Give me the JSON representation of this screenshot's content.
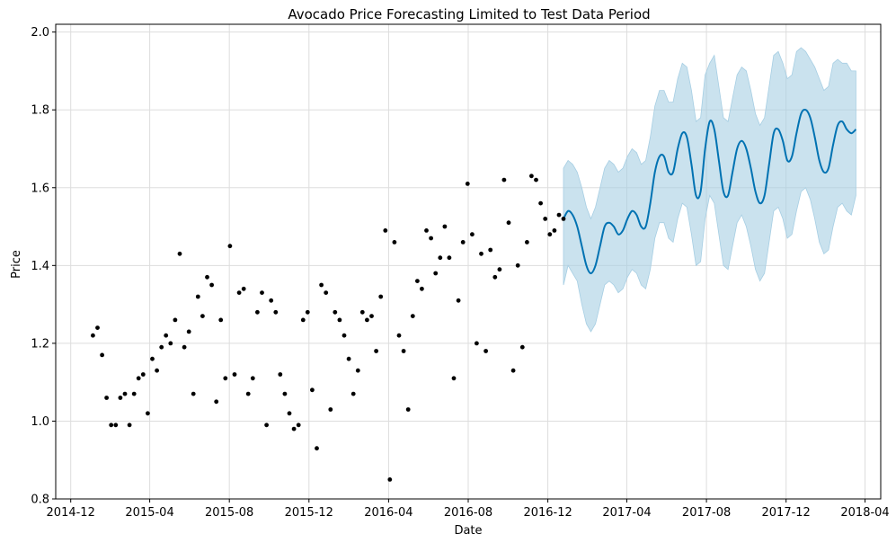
{
  "chart_data": {
    "type": "scatter",
    "title": "Avocado Price Forecasting Limited to Test Data Period",
    "xlabel": "Date",
    "ylabel": "Price",
    "xlim": [
      "2014-11-08",
      "2018-04-25"
    ],
    "ylim": [
      0.8,
      2.02
    ],
    "x_ticks": [
      "2014-12",
      "2015-04",
      "2015-08",
      "2015-12",
      "2016-04",
      "2016-08",
      "2016-12",
      "2017-04",
      "2017-08",
      "2017-12",
      "2018-04"
    ],
    "y_ticks": [
      "0.8",
      "1.0",
      "1.2",
      "1.4",
      "1.6",
      "1.8",
      "2.0"
    ],
    "grid": true,
    "colors": {
      "observed": "#000000",
      "forecast_line": "#0072B2",
      "interval_fill": "#A6CEE3"
    },
    "observed": [
      [
        "2015-01-04",
        1.22
      ],
      [
        "2015-01-11",
        1.24
      ],
      [
        "2015-01-18",
        1.17
      ],
      [
        "2015-01-25",
        1.06
      ],
      [
        "2015-02-01",
        0.99
      ],
      [
        "2015-02-08",
        0.99
      ],
      [
        "2015-02-15",
        1.06
      ],
      [
        "2015-02-22",
        1.07
      ],
      [
        "2015-03-01",
        0.99
      ],
      [
        "2015-03-08",
        1.07
      ],
      [
        "2015-03-15",
        1.11
      ],
      [
        "2015-03-22",
        1.12
      ],
      [
        "2015-03-29",
        1.02
      ],
      [
        "2015-04-05",
        1.16
      ],
      [
        "2015-04-12",
        1.13
      ],
      [
        "2015-04-19",
        1.19
      ],
      [
        "2015-04-26",
        1.22
      ],
      [
        "2015-05-03",
        1.2
      ],
      [
        "2015-05-10",
        1.26
      ],
      [
        "2015-05-17",
        1.43
      ],
      [
        "2015-05-24",
        1.19
      ],
      [
        "2015-05-31",
        1.23
      ],
      [
        "2015-06-07",
        1.07
      ],
      [
        "2015-06-14",
        1.32
      ],
      [
        "2015-06-21",
        1.27
      ],
      [
        "2015-06-28",
        1.37
      ],
      [
        "2015-07-05",
        1.35
      ],
      [
        "2015-07-12",
        1.05
      ],
      [
        "2015-07-19",
        1.26
      ],
      [
        "2015-07-26",
        1.11
      ],
      [
        "2015-08-02",
        1.45
      ],
      [
        "2015-08-09",
        1.12
      ],
      [
        "2015-08-16",
        1.33
      ],
      [
        "2015-08-23",
        1.34
      ],
      [
        "2015-08-30",
        1.07
      ],
      [
        "2015-09-06",
        1.11
      ],
      [
        "2015-09-13",
        1.28
      ],
      [
        "2015-09-20",
        1.33
      ],
      [
        "2015-09-27",
        0.99
      ],
      [
        "2015-10-04",
        1.31
      ],
      [
        "2015-10-11",
        1.28
      ],
      [
        "2015-10-18",
        1.12
      ],
      [
        "2015-10-25",
        1.07
      ],
      [
        "2015-11-01",
        1.02
      ],
      [
        "2015-11-08",
        0.98
      ],
      [
        "2015-11-15",
        0.99
      ],
      [
        "2015-11-22",
        1.26
      ],
      [
        "2015-11-29",
        1.28
      ],
      [
        "2015-12-06",
        1.08
      ],
      [
        "2015-12-13",
        0.93
      ],
      [
        "2015-12-20",
        1.35
      ],
      [
        "2015-12-27",
        1.33
      ],
      [
        "2016-01-03",
        1.03
      ],
      [
        "2016-01-10",
        1.28
      ],
      [
        "2016-01-17",
        1.26
      ],
      [
        "2016-01-24",
        1.22
      ],
      [
        "2016-01-31",
        1.16
      ],
      [
        "2016-02-07",
        1.07
      ],
      [
        "2016-02-14",
        1.13
      ],
      [
        "2016-02-21",
        1.28
      ],
      [
        "2016-02-28",
        1.26
      ],
      [
        "2016-03-06",
        1.27
      ],
      [
        "2016-03-13",
        1.18
      ],
      [
        "2016-03-20",
        1.32
      ],
      [
        "2016-03-27",
        1.49
      ],
      [
        "2016-04-03",
        0.85
      ],
      [
        "2016-04-10",
        1.46
      ],
      [
        "2016-04-17",
        1.22
      ],
      [
        "2016-04-24",
        1.18
      ],
      [
        "2016-05-01",
        1.03
      ],
      [
        "2016-05-08",
        1.27
      ],
      [
        "2016-05-15",
        1.36
      ],
      [
        "2016-05-22",
        1.34
      ],
      [
        "2016-05-29",
        1.49
      ],
      [
        "2016-06-05",
        1.47
      ],
      [
        "2016-06-12",
        1.38
      ],
      [
        "2016-06-19",
        1.42
      ],
      [
        "2016-06-26",
        1.5
      ],
      [
        "2016-07-03",
        1.42
      ],
      [
        "2016-07-10",
        1.11
      ],
      [
        "2016-07-17",
        1.31
      ],
      [
        "2016-07-24",
        1.46
      ],
      [
        "2016-07-31",
        1.61
      ],
      [
        "2016-08-07",
        1.48
      ],
      [
        "2016-08-14",
        1.2
      ],
      [
        "2016-08-21",
        1.43
      ],
      [
        "2016-08-28",
        1.18
      ],
      [
        "2016-09-04",
        1.44
      ],
      [
        "2016-09-11",
        1.37
      ],
      [
        "2016-09-18",
        1.39
      ],
      [
        "2016-09-25",
        1.62
      ],
      [
        "2016-10-02",
        1.51
      ],
      [
        "2016-10-09",
        1.13
      ],
      [
        "2016-10-16",
        1.4
      ],
      [
        "2016-10-23",
        1.19
      ],
      [
        "2016-10-30",
        1.46
      ],
      [
        "2016-11-06",
        1.63
      ],
      [
        "2016-11-13",
        1.62
      ],
      [
        "2016-11-20",
        1.56
      ],
      [
        "2016-11-27",
        1.52
      ],
      [
        "2016-12-04",
        1.48
      ],
      [
        "2016-12-11",
        1.49
      ],
      [
        "2016-12-18",
        1.53
      ],
      [
        "2016-12-25",
        1.52
      ]
    ],
    "forecast": [
      [
        "2016-12-25",
        1.52,
        1.35,
        1.65
      ],
      [
        "2017-01-01",
        1.54,
        1.4,
        1.67
      ],
      [
        "2017-01-08",
        1.53,
        1.38,
        1.66
      ],
      [
        "2017-01-15",
        1.5,
        1.36,
        1.64
      ],
      [
        "2017-01-22",
        1.45,
        1.3,
        1.6
      ],
      [
        "2017-01-29",
        1.4,
        1.25,
        1.55
      ],
      [
        "2017-02-05",
        1.38,
        1.23,
        1.52
      ],
      [
        "2017-02-12",
        1.4,
        1.25,
        1.55
      ],
      [
        "2017-02-19",
        1.45,
        1.3,
        1.6
      ],
      [
        "2017-02-26",
        1.5,
        1.35,
        1.65
      ],
      [
        "2017-03-05",
        1.51,
        1.36,
        1.67
      ],
      [
        "2017-03-12",
        1.5,
        1.35,
        1.66
      ],
      [
        "2017-03-19",
        1.48,
        1.33,
        1.64
      ],
      [
        "2017-03-26",
        1.49,
        1.34,
        1.65
      ],
      [
        "2017-04-02",
        1.52,
        1.37,
        1.68
      ],
      [
        "2017-04-09",
        1.54,
        1.39,
        1.7
      ],
      [
        "2017-04-16",
        1.53,
        1.38,
        1.69
      ],
      [
        "2017-04-23",
        1.5,
        1.35,
        1.66
      ],
      [
        "2017-04-30",
        1.5,
        1.34,
        1.67
      ],
      [
        "2017-05-07",
        1.56,
        1.39,
        1.73
      ],
      [
        "2017-05-14",
        1.64,
        1.47,
        1.81
      ],
      [
        "2017-05-21",
        1.68,
        1.51,
        1.85
      ],
      [
        "2017-05-28",
        1.68,
        1.51,
        1.85
      ],
      [
        "2017-06-04",
        1.64,
        1.47,
        1.82
      ],
      [
        "2017-06-11",
        1.64,
        1.46,
        1.82
      ],
      [
        "2017-06-18",
        1.7,
        1.52,
        1.88
      ],
      [
        "2017-06-25",
        1.74,
        1.56,
        1.92
      ],
      [
        "2017-07-02",
        1.73,
        1.55,
        1.91
      ],
      [
        "2017-07-09",
        1.66,
        1.48,
        1.85
      ],
      [
        "2017-07-16",
        1.58,
        1.4,
        1.77
      ],
      [
        "2017-07-23",
        1.59,
        1.41,
        1.78
      ],
      [
        "2017-07-30",
        1.7,
        1.52,
        1.89
      ],
      [
        "2017-08-06",
        1.77,
        1.58,
        1.92
      ],
      [
        "2017-08-13",
        1.75,
        1.56,
        1.94
      ],
      [
        "2017-08-20",
        1.67,
        1.48,
        1.86
      ],
      [
        "2017-08-27",
        1.59,
        1.4,
        1.78
      ],
      [
        "2017-09-03",
        1.58,
        1.39,
        1.77
      ],
      [
        "2017-09-10",
        1.64,
        1.45,
        1.83
      ],
      [
        "2017-09-17",
        1.7,
        1.51,
        1.89
      ],
      [
        "2017-09-24",
        1.72,
        1.53,
        1.91
      ],
      [
        "2017-10-01",
        1.7,
        1.5,
        1.9
      ],
      [
        "2017-10-08",
        1.65,
        1.45,
        1.85
      ],
      [
        "2017-10-15",
        1.59,
        1.39,
        1.79
      ],
      [
        "2017-10-22",
        1.56,
        1.36,
        1.76
      ],
      [
        "2017-10-29",
        1.58,
        1.38,
        1.78
      ],
      [
        "2017-11-05",
        1.66,
        1.46,
        1.86
      ],
      [
        "2017-11-12",
        1.74,
        1.54,
        1.94
      ],
      [
        "2017-11-19",
        1.75,
        1.55,
        1.95
      ],
      [
        "2017-11-26",
        1.72,
        1.52,
        1.92
      ],
      [
        "2017-12-03",
        1.67,
        1.47,
        1.88
      ],
      [
        "2017-12-10",
        1.68,
        1.48,
        1.89
      ],
      [
        "2017-12-17",
        1.74,
        1.54,
        1.95
      ],
      [
        "2017-12-24",
        1.79,
        1.59,
        1.96
      ],
      [
        "2017-12-31",
        1.8,
        1.6,
        1.95
      ],
      [
        "2018-01-07",
        1.78,
        1.57,
        1.93
      ],
      [
        "2018-01-14",
        1.73,
        1.52,
        1.91
      ],
      [
        "2018-01-21",
        1.67,
        1.46,
        1.88
      ],
      [
        "2018-01-28",
        1.64,
        1.43,
        1.85
      ],
      [
        "2018-02-04",
        1.65,
        1.44,
        1.86
      ],
      [
        "2018-02-11",
        1.71,
        1.5,
        1.92
      ],
      [
        "2018-02-18",
        1.76,
        1.55,
        1.93
      ],
      [
        "2018-02-25",
        1.77,
        1.56,
        1.92
      ],
      [
        "2018-03-04",
        1.75,
        1.54,
        1.92
      ],
      [
        "2018-03-11",
        1.74,
        1.53,
        1.9
      ],
      [
        "2018-03-18",
        1.75,
        1.58,
        1.9
      ]
    ]
  }
}
